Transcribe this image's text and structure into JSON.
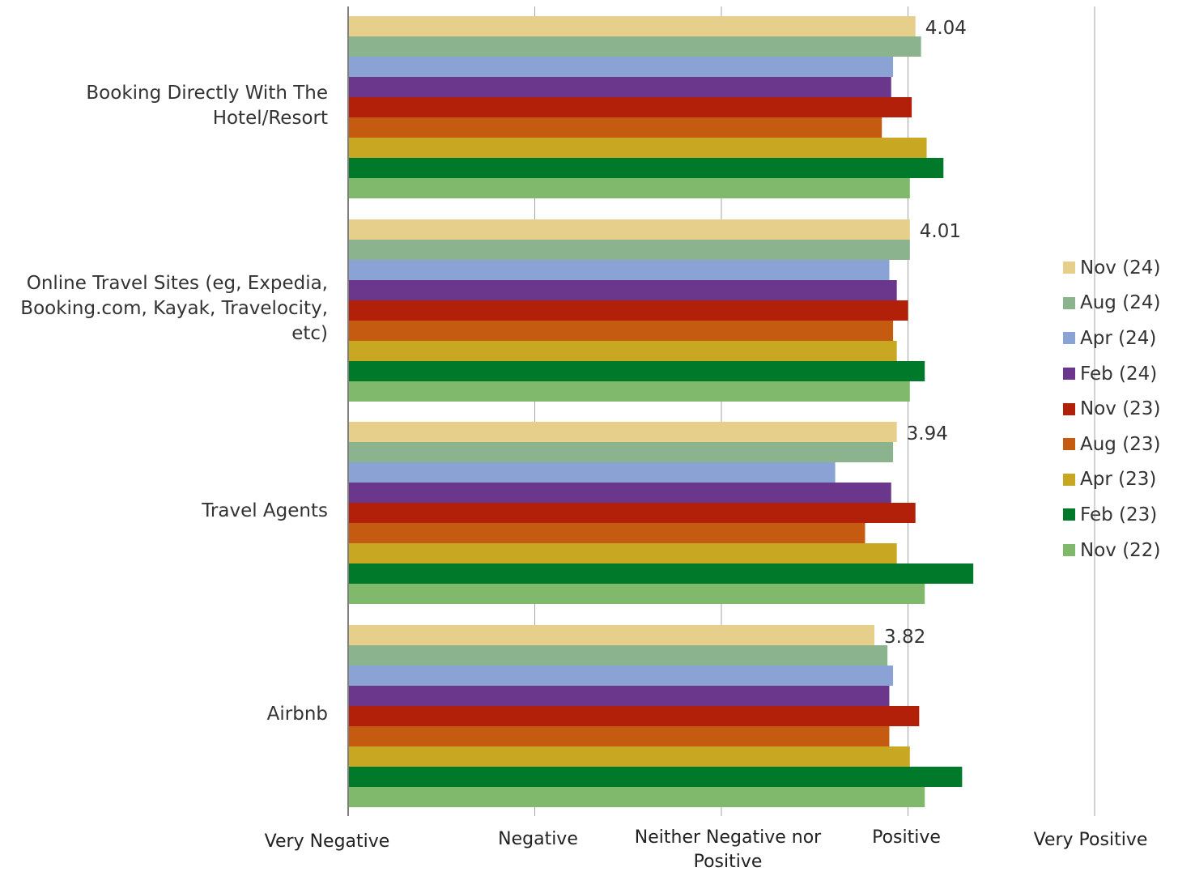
{
  "chart_data": {
    "type": "bar",
    "orientation": "horizontal",
    "categories": [
      "Booking Directly With The\nHotel/Resort",
      "Online Travel Sites (eg, Expedia,\nBooking.com, Kayak, Travelocity,\netc)",
      "Travel Agents",
      "Airbnb"
    ],
    "x_tick_labels": [
      "Very Negative",
      "Negative",
      "Neither Negative nor\nPositive",
      "Positive",
      "Very Positive"
    ],
    "xlim": [
      1,
      5
    ],
    "grid": true,
    "legend_position": "right",
    "series": [
      {
        "name": "Nov (24)",
        "color": "#E5CF8B",
        "values": [
          4.04,
          4.01,
          3.94,
          3.82
        ]
      },
      {
        "name": "Aug (24)",
        "color": "#8AB38E",
        "values": [
          4.07,
          4.01,
          3.92,
          3.89
        ]
      },
      {
        "name": "Apr (24)",
        "color": "#8AA2D4",
        "values": [
          3.92,
          3.9,
          3.61,
          3.92
        ]
      },
      {
        "name": "Feb (24)",
        "color": "#6A378C",
        "values": [
          3.91,
          3.94,
          3.91,
          3.9
        ]
      },
      {
        "name": "Nov (23)",
        "color": "#B3200A",
        "values": [
          4.02,
          4.0,
          4.04,
          4.06
        ]
      },
      {
        "name": "Aug (23)",
        "color": "#C55A11",
        "values": [
          3.86,
          3.92,
          3.77,
          3.9
        ]
      },
      {
        "name": "Apr (23)",
        "color": "#C8A822",
        "values": [
          4.1,
          3.94,
          3.94,
          4.01
        ]
      },
      {
        "name": "Feb (23)",
        "color": "#007A2A",
        "values": [
          4.19,
          4.09,
          4.35,
          4.29
        ]
      },
      {
        "name": "Nov (22)",
        "color": "#80B86C",
        "values": [
          4.01,
          4.01,
          4.09,
          4.09
        ]
      }
    ],
    "data_labels": [
      "4.04",
      "4.01",
      "3.94",
      "3.82"
    ]
  }
}
